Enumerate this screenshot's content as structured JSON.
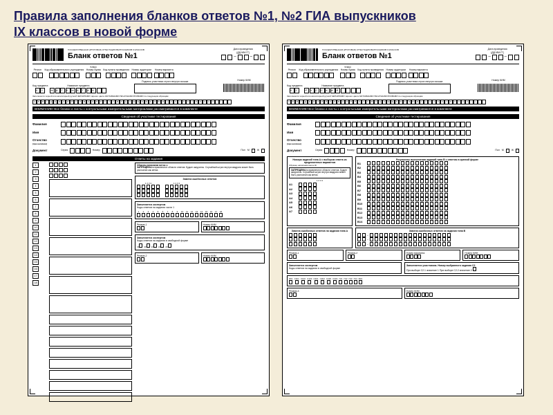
{
  "page": {
    "title_line1": "Правила заполнения бланков ответов №1, №2 ГИА выпускников",
    "title_line2": "IX классов в новой форме",
    "background_color": "#f4edd9",
    "title_color": "#1a1a5e"
  },
  "form_common": {
    "header_small": "ГОСУДАРСТВЕННАЯ (ИТОГОВАЯ) АТТЕСТАЦИЯ ВЫПУСКНИКОВ 9 КЛАССОВ",
    "form_title": "Бланк ответов №1",
    "date_label": "Дата проведения",
    "date_sub": "(ДД-ММ-ГГ)",
    "region_label": "Регион",
    "inst_code_label": "Код образовательного учреждения",
    "class_label": "Класс",
    "class_sub": "Номер  Буква",
    "point_code_label": "Код пункта проведения",
    "room_label": "Номер аудитории",
    "variant_label": "Номер варианта",
    "subj_code_label": "Код предмета",
    "subj_name_label": "Название предмета",
    "sig_label": "Подпись участника строго внутри окошка",
    "kim_label": "Номер КИМ",
    "instr_text": "Заполняется чёрной или капиллярной ручкой ЧЕРНИЛАМИ чёрного цвета ЗАГЛАВНЫМИ ПЕЧАТНЫМИ БУКВАМИ по следующим образцам:",
    "attention_bar": "ВНИМАНИЕ!",
    "attention_text": "Все бланки и листы с контрольными измерительными материалами рассматриваются в комплекте",
    "section_participant": "Сведения об участнике тестирования",
    "surname": "Фамилия",
    "name": "Имя",
    "patronymic": "Отчество",
    "patronymic_sub": "(при наличии)",
    "document": "Документ",
    "series": "Серия",
    "number": "Номер",
    "gender": "Пол",
    "gender_m": "М",
    "gender_f": "Ж",
    "section_answers": "Ответы на задания",
    "sample_label": "Образец написания меток",
    "forbidden_label": "ЗАПРЕЩЕНЫ",
    "forbidden_text": "исправления в области ответов. Будьте аккуратны. Случайный штрих внутри квадрата может быть распознан как метка.",
    "replace_section": "Замена ошибочных ответов",
    "expert_section": "Заполняется экспертом",
    "expert_sub": "Коды ответов на задания части 1",
    "reserve1": "Резерв-1",
    "reserve2": "Резерв-2",
    "reserve3": "Резерв-3",
    "free_answer": "Коды ответов на задания в свободной форме",
    "alphabet": "АБВГДЕЖЗИЙКЛМНОПРСТУФХЦЧШЩЪЫЬЭЮЯ1234567890AVIL-,"
  },
  "form_left": {
    "subj_code": "02",
    "subj_name": "МАТЕМАТИК",
    "task_numbers": [
      1,
      2,
      3,
      4,
      5,
      6,
      7,
      8,
      9,
      10,
      11,
      12,
      13,
      14,
      15,
      16,
      17,
      18
    ]
  },
  "form_right": {
    "subj_code": "01",
    "subj_name": "РУССКИЙ",
    "typeA_title": "Номера заданий типа А с выбором ответа из предложенных вариантов",
    "typeB_title": "Результаты выполнения заданий типа В с ответом в краткой форме",
    "a_tasks": [
      "А1",
      "А2",
      "А3",
      "А4",
      "А5",
      "А6",
      "А7"
    ],
    "b_tasks": [
      "В1",
      "В2",
      "В3",
      "В4",
      "В5",
      "В6",
      "В7",
      "В8",
      "В9",
      "В10",
      "В11",
      "В12",
      "В13",
      "В14"
    ],
    "replace_a": "Замена ошибочных ответов на задания типа А",
    "replace_b": "Замена ошибочных ответов на задания типа В",
    "expert2": "Заполняется участником. Номер выбранного задания С2",
    "c2_opts": "При выборе С2.1 значение 1 При выборе С2.2 значение 2",
    "c_tasks": [
      "ИК1",
      "С1К1",
      "С1К2",
      "С1К3",
      "С2К1",
      "С2К2",
      "С2К3",
      "С2К4",
      "ГК1",
      "ГК2",
      "ГК3",
      "ГК4",
      "ФК1"
    ]
  }
}
